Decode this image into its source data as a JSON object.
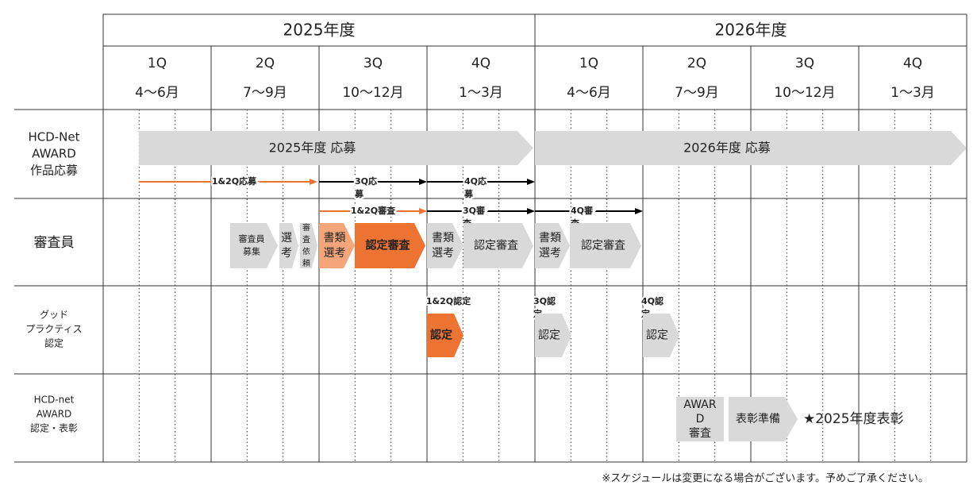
{
  "header": {
    "years": [
      "2025年度",
      "2026年度"
    ],
    "quarters": [
      {
        "name": "1Q",
        "months": "4～6月"
      },
      {
        "name": "2Q",
        "months": "7～9月"
      },
      {
        "name": "3Q",
        "months": "10～12月"
      },
      {
        "name": "4Q",
        "months": "1～3月"
      },
      {
        "name": "1Q",
        "months": "4～6月"
      },
      {
        "name": "2Q",
        "months": "7～9月"
      },
      {
        "name": "3Q",
        "months": "10～12月"
      },
      {
        "name": "4Q",
        "months": "1～3月"
      }
    ]
  },
  "rows": [
    {
      "label": [
        "HCD-Net",
        "AWARD",
        "作品応募"
      ],
      "bars": [
        "2025年度 応募",
        "2026年度 応募"
      ],
      "periods": [
        [
          "1&2Q応募"
        ],
        [
          "3Q応",
          "募"
        ],
        [
          "4Q応",
          "募"
        ]
      ]
    },
    {
      "label": [
        "審査員"
      ],
      "periods": [
        [
          "1&2Q審査"
        ],
        [
          "3Q審",
          "査"
        ],
        [
          "4Q審",
          "査"
        ]
      ],
      "steps": [
        [
          "審査員",
          "募集"
        ],
        [
          "選",
          "考"
        ],
        [
          "審",
          "査",
          "依",
          "頼"
        ],
        [
          "書類",
          "選考"
        ],
        [
          "認定審査"
        ],
        [
          "書類",
          "選考"
        ],
        [
          "認定審査"
        ],
        [
          "書類",
          "選考"
        ],
        [
          "認定審査"
        ]
      ]
    },
    {
      "label": [
        "グッド",
        "プラクティス",
        "認定"
      ],
      "periods": [
        [
          "1&2Q認定"
        ],
        [
          "3Q認",
          "定"
        ],
        [
          "4Q認",
          "定"
        ]
      ],
      "steps": [
        [
          "認定"
        ],
        [
          "認定"
        ],
        [
          "認定"
        ]
      ]
    },
    {
      "label": [
        "HCD-net",
        "AWARD",
        "認定・表彰"
      ],
      "steps": [
        [
          "AWAR",
          "D",
          "審査"
        ],
        [
          "表彰準備"
        ]
      ],
      "award": "★2025年度表彰"
    }
  ],
  "note": "※スケジュールは変更になる場合がございます。予めご了承ください。"
}
